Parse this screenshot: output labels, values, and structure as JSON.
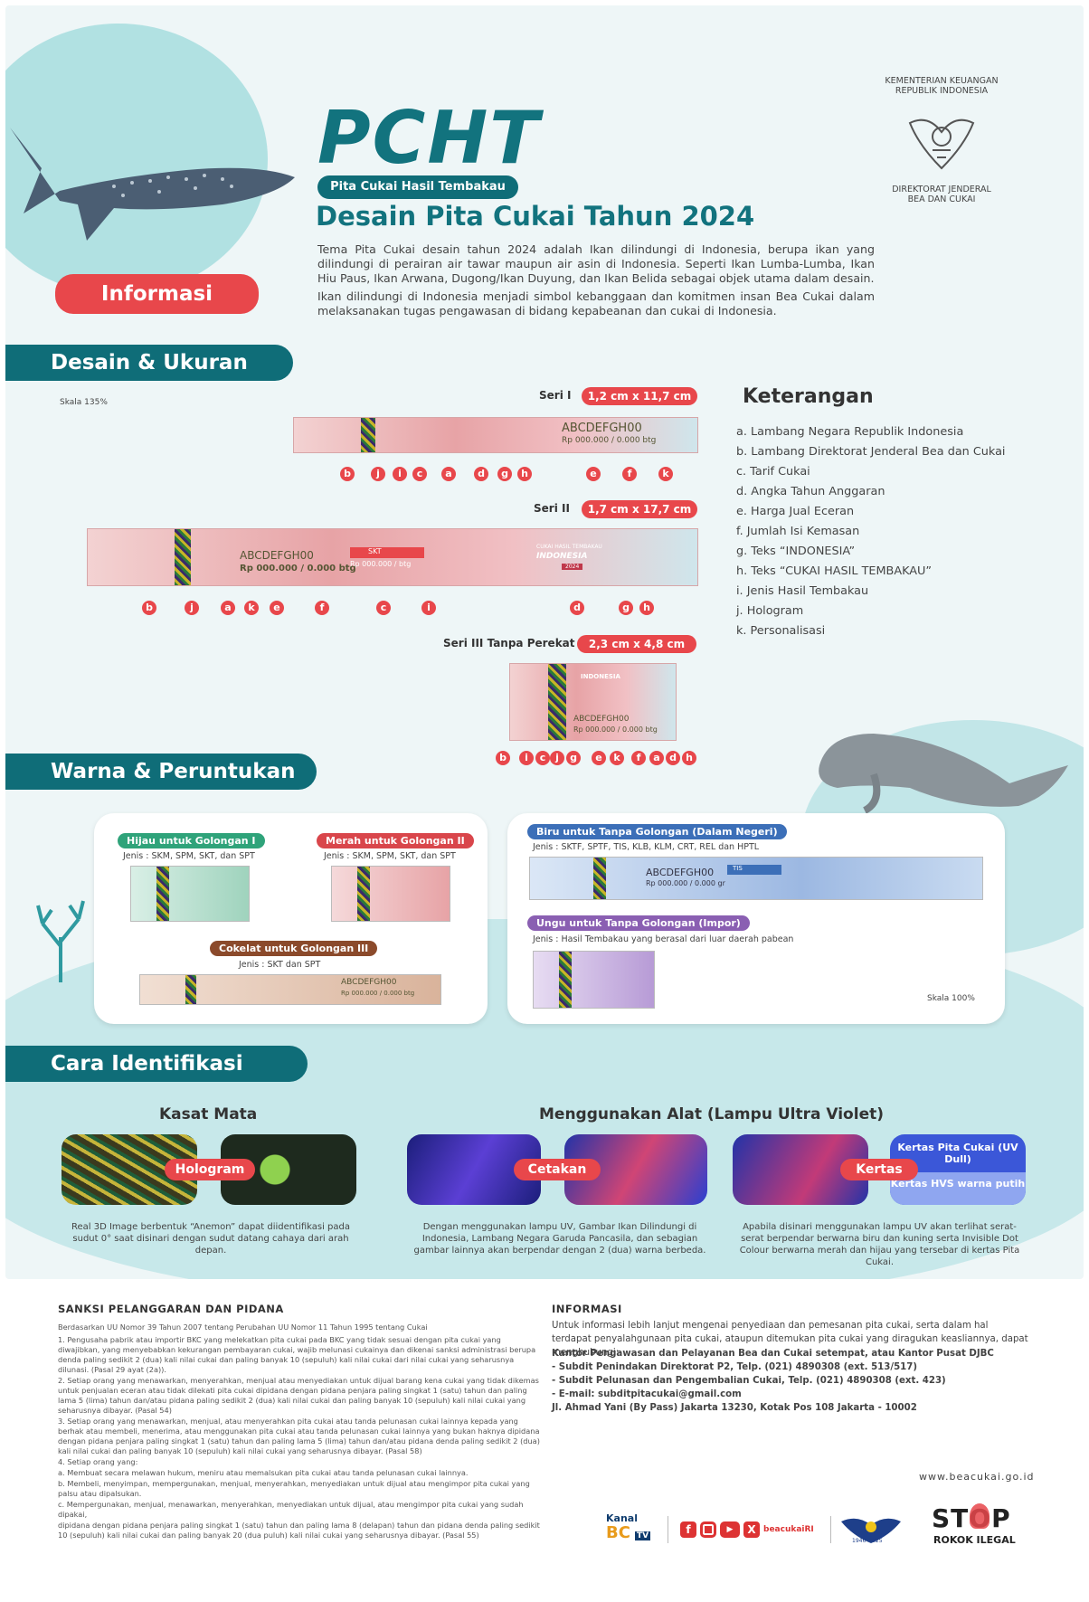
{
  "header": {
    "title": "PCHT",
    "subtitle_pill": "Pita Cukai Hasil Tembakau",
    "heading": "Desain Pita Cukai Tahun 2024",
    "para1": "Tema Pita Cukai desain tahun 2024 adalah Ikan dilindungi di Indonesia, berupa ikan yang dilindungi di perairan air tawar maupun air asin di Indonesia. Seperti Ikan Lumba-Lumba, Ikan Hiu Paus, Ikan Arwana, Dugong/Ikan Duyung, dan Ikan Belida sebagai objek utama dalam desain.",
    "para2": "Ikan dilindungi di Indonesia menjadi simbol kebanggaan dan komitmen insan Bea Cukai dalam melaksanakan tugas pengawasan di bidang kepabeanan dan cukai di Indonesia.",
    "info_button": "Informasi",
    "ministry_top": "KEMENTERIAN KEUANGAN\nREPUBLIK INDONESIA",
    "ministry_bottom": "DIREKTORAT JENDERAL\nBEA DAN CUKAI"
  },
  "desain": {
    "section_title": "Desain & Ukuran",
    "scale": "Skala 135%",
    "seri1": {
      "label": "Seri I",
      "size": "1,2 cm x 11,7 cm",
      "code": "ABCDEFGH00",
      "price": "Rp 000.000 / 0.000 btg",
      "letters": [
        "b",
        "j",
        "i",
        "c",
        "a",
        "d",
        "g",
        "h",
        "e",
        "f",
        "k"
      ]
    },
    "seri2": {
      "label": "Seri II",
      "size": "1,7 cm x 17,7 cm",
      "code": "ABCDEFGH00",
      "price": "Rp 000.000 / 0.000 btg",
      "type": "SKT",
      "price_small": "Rp 000.000 / btg",
      "banner": "CUKAI HASIL TEMBAKAU",
      "country": "INDONESIA",
      "year": "2024",
      "letters": [
        "b",
        "j",
        "a",
        "k",
        "e",
        "f",
        "c",
        "i",
        "d",
        "g",
        "h"
      ]
    },
    "seri3": {
      "label": "Seri III Tanpa Perekat",
      "size": "2,3 cm x 4,8 cm",
      "code": "ABCDEFGH00",
      "price": "Rp 000.000 / 0.000 btg",
      "country": "INDONESIA",
      "letters": [
        "b",
        "i",
        "c",
        "j",
        "g",
        "e",
        "k",
        "f",
        "a",
        "d",
        "h"
      ]
    },
    "keterangan_title": "Keterangan",
    "keterangan": [
      "a.  Lambang Negara Republik Indonesia",
      "b.  Lambang Direktorat Jenderal Bea dan Cukai",
      "c.  Tarif Cukai",
      "d.  Angka Tahun Anggaran",
      "e.  Harga Jual Eceran",
      "f.   Jumlah Isi Kemasan",
      "g.  Teks “INDONESIA”",
      "h.  Teks “CUKAI HASIL TEMBAKAU”",
      "i.   Jenis Hasil Tembakau",
      "j.   Hologram",
      "k.  Personalisasi"
    ]
  },
  "warna": {
    "section_title": "Warna & Peruntukan",
    "hijau": {
      "label": "Hijau untuk Golongan I",
      "jenis": "Jenis : SKM, SPM, SKT, dan SPT",
      "color": "#2fa37a"
    },
    "merah": {
      "label": "Merah untuk Golongan II",
      "jenis": "Jenis : SKM, SPM, SKT, dan SPT",
      "color": "#d9464b"
    },
    "cokelat": {
      "label": "Cokelat untuk Golongan III",
      "jenis": "Jenis : SKT dan SPT",
      "color": "#8b4a2b",
      "code": "ABCDEFGH00",
      "price": "Rp 000.000 / 0.000 btg"
    },
    "biru": {
      "label": "Biru untuk Tanpa Golongan (Dalam Negeri)",
      "jenis": "Jenis : SKTF, SPTF, TIS, KLB, KLM, CRT, REL dan HPTL",
      "color": "#3c6fb8",
      "code": "ABCDEFGH00",
      "price": "Rp 000.000 / 0.000 gr",
      "type": "TIS"
    },
    "ungu": {
      "label": "Ungu untuk Tanpa Golongan (Impor)",
      "jenis": "Jenis : Hasil Tembakau yang berasal dari luar daerah pabean",
      "color": "#8a5fb2"
    },
    "scale": "Skala 100%"
  },
  "identifikasi": {
    "section_title": "Cara Identifikasi",
    "kasat_mata": "Kasat Mata",
    "alat": "Menggunakan Alat (Lampu Ultra Violet)",
    "hologram_label": "Hologram",
    "cetakan_label": "Cetakan",
    "kertas_label": "Kertas",
    "kertas_dull": "Kertas Pita Cukai (UV Dull)",
    "kertas_hvs": "Kertas HVS warna putih",
    "cap1": "Real 3D Image berbentuk “Anemon” dapat diidentifikasi pada sudut 0° saat disinari dengan sudut datang cahaya dari arah depan.",
    "cap2": "Dengan menggunakan lampu UV, Gambar Ikan Dilindungi di Indonesia, Lambang Negara Garuda Pancasila, dan sebagian gambar lainnya akan berpendar dengan 2 (dua) warna berbeda.",
    "cap3": "Apabila disinari menggunakan lampu UV akan terlihat serat-serat berpendar berwarna biru dan kuning serta Invisible Dot Colour berwarna merah dan hijau yang tersebar di kertas Pita Cukai."
  },
  "footer": {
    "sanksi_title": "SANKSI PELANGGARAN DAN PIDANA",
    "sanksi_sub": "Berdasarkan UU Nomor 39 Tahun 2007 tentang Perubahan UU Nomor 11 Tahun 1995 tentang Cukai",
    "sanksi_items": [
      "1.  Pengusaha pabrik atau importir BKC yang melekatkan pita cukai pada BKC yang tidak sesuai dengan pita cukai yang diwajibkan, yang menyebabkan kekurangan pembayaran cukai, wajib melunasi cukainya dan dikenai sanksi administrasi berupa denda paling sedikit 2 (dua) kali nilai cukai dan paling banyak 10 (sepuluh) kali nilai cukai dari nilai cukai yang seharusnya dilunasi. (Pasal 29 ayat (2a)).",
      "2.  Setiap orang yang menawarkan, menyerahkan, menjual atau menyediakan untuk dijual barang kena cukai yang tidak dikemas untuk penjualan eceran atau tidak dilekati pita cukai dipidana dengan pidana penjara paling singkat 1 (satu) tahun dan paling lama 5 (lima) tahun dan/atau pidana paling sedikit 2 (dua) kali nilai cukai dan paling banyak 10 (sepuluh) kali nilai cukai yang seharusnya dibayar. (Pasal 54)",
      "3.  Setiap orang yang menawarkan, menjual, atau menyerahkan pita cukai atau tanda pelunasan cukai lainnya kepada yang berhak atau membeli, menerima, atau menggunakan pita cukai atau tanda pelunasan cukai lainnya yang bukan haknya dipidana dengan pidana penjara paling singkat 1 (satu) tahun dan paling lama 5 (lima) tahun dan/atau pidana denda paling sedikit 2 (dua) kali nilai cukai dan paling banyak 10 (sepuluh) kali nilai cukai yang seharusnya dibayar. (Pasal 58)",
      "4.  Setiap orang yang:",
      "     a.  Membuat secara melawan hukum, meniru atau memalsukan pita cukai atau tanda pelunasan cukai lainnya.",
      "     b.  Membeli, menyimpan, mempergunakan, menjual, menyerahkan, menyediakan untuk dijual atau mengimpor pita cukai yang palsu atau dipalsukan.",
      "     c.  Mempergunakan, menjual, menawarkan, menyerahkan, menyediakan untuk dijual, atau mengimpor pita cukai yang sudah dipakai,",
      "     dipidana dengan pidana penjara paling singkat 1 (satu) tahun dan paling lama 8 (delapan) tahun dan pidana denda paling sedikit 10 (sepuluh) kali nilai cukai dan paling banyak 20 (dua puluh) kali nilai cukai yang seharusnya dibayar. (Pasal 55)"
    ],
    "info_title": "INFORMASI",
    "info_para": "Untuk informasi lebih lanjut mengenai penyediaan dan pemesanan pita cukai, serta dalam hal terdapat penyalahgunaan pita cukai, ataupun ditemukan pita cukai yang diragukan keasliannya, dapat menghubungi:",
    "info_lines": [
      "Kantor Pengawasan dan Pelayanan Bea dan Cukai setempat, atau Kantor Pusat DJBC",
      "- Subdit Penindakan Direktorat P2, Telp. (021) 4890308 (ext. 513/517)",
      "- Subdit Pelunasan dan Pengembalian Cukai, Telp. (021) 4890308 (ext. 423)",
      "- E-mail: subditpitacukai@gmail.com",
      "Jl. Ahmad Yani (By Pass) Jakarta 13230, Kotak Pos 108 Jakarta - 10002"
    ],
    "website": "www.beacukai.go.id",
    "kanal_top": "Kanal",
    "kanal_bottom": "BC",
    "kanal_tv": "TV",
    "handle": "beacukaiRI",
    "stop_word": "STOP",
    "rokok_ilegal": "ROKOK ILEGAL",
    "anniversary": "1946–2025"
  }
}
